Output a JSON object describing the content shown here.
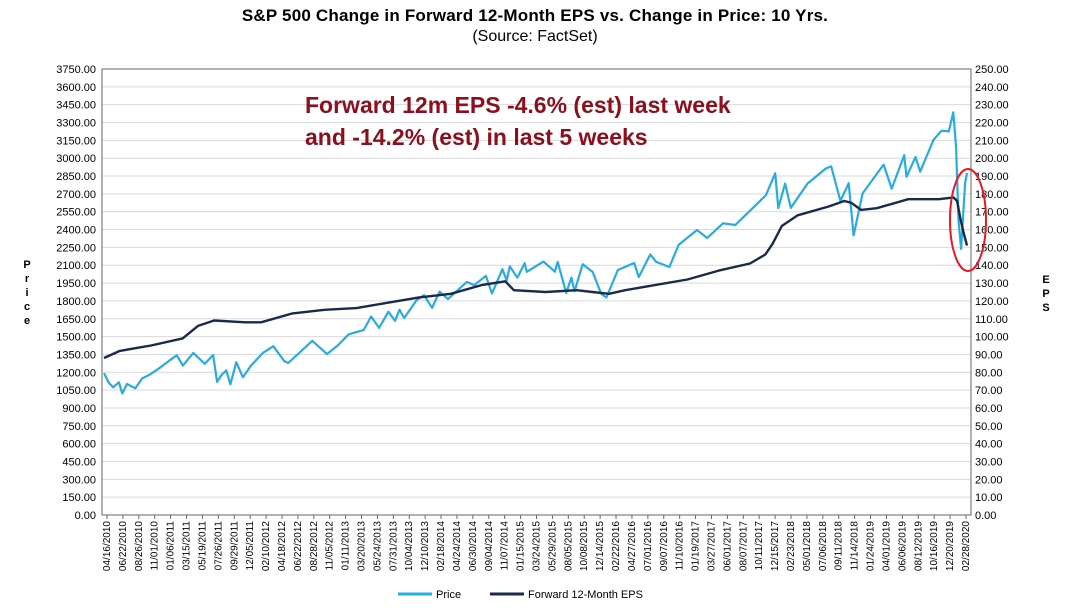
{
  "chart_data": {
    "type": "line",
    "title": "S&P 500 Change in Forward 12-Month EPS vs. Change in Price: 10 Yrs.",
    "subtitle": "(Source: FactSet)",
    "ylabel": "Price",
    "y2label": "EPS",
    "ylim": [
      0,
      3750
    ],
    "y2lim": [
      0,
      250
    ],
    "yticks": [
      "0.00",
      "150.00",
      "300.00",
      "450.00",
      "600.00",
      "750.00",
      "900.00",
      "1050.00",
      "1200.00",
      "1350.00",
      "1500.00",
      "1650.00",
      "1800.00",
      "1950.00",
      "2100.00",
      "2250.00",
      "2400.00",
      "2550.00",
      "2700.00",
      "2850.00",
      "3000.00",
      "3150.00",
      "3300.00",
      "3450.00",
      "3600.00",
      "3750.00"
    ],
    "y2ticks": [
      "0.00",
      "10.00",
      "20.00",
      "30.00",
      "40.00",
      "50.00",
      "60.00",
      "70.00",
      "80.00",
      "90.00",
      "100.00",
      "110.00",
      "120.00",
      "130.00",
      "140.00",
      "150.00",
      "160.00",
      "170.00",
      "180.00",
      "190.00",
      "200.00",
      "210.00",
      "220.00",
      "230.00",
      "240.00",
      "250.00"
    ],
    "xticks": [
      "04/16/2010",
      "06/22/2010",
      "08/26/2010",
      "11/01/2010",
      "01/06/2011",
      "03/15/2011",
      "05/19/2011",
      "07/26/2011",
      "09/29/2011",
      "12/05/2011",
      "02/10/2012",
      "04/18/2012",
      "06/22/2012",
      "08/28/2012",
      "11/05/2012",
      "01/11/2013",
      "03/20/2013",
      "05/24/2013",
      "07/31/2013",
      "10/04/2013",
      "12/10/2013",
      "02/18/2014",
      "04/24/2014",
      "06/30/2014",
      "09/04/2014",
      "11/07/2014",
      "01/15/2015",
      "03/24/2015",
      "05/29/2015",
      "08/05/2015",
      "10/08/2015",
      "12/14/2015",
      "02/22/2016",
      "04/27/2016",
      "07/01/2016",
      "09/07/2016",
      "11/10/2016",
      "01/19/2017",
      "03/27/2017",
      "06/01/2017",
      "08/07/2017",
      "10/11/2017",
      "12/15/2017",
      "02/23/2018",
      "05/01/2018",
      "07/06/2018",
      "09/11/2018",
      "11/14/2018",
      "01/24/2019",
      "04/01/2019",
      "06/06/2019",
      "08/12/2019",
      "10/16/2019",
      "12/20/2019",
      "02/28/2020"
    ],
    "grid": true,
    "legend_position": "bottom",
    "annotation": [
      "Forward 12m EPS -4.6% (est) last week",
      "and -14.2% (est) in last 5 weeks"
    ],
    "series": [
      {
        "name": "Price",
        "axis": "left",
        "color": "#29abe2",
        "points": [
          [
            "2010-04-16",
            1192
          ],
          [
            "2010-05-07",
            1110
          ],
          [
            "2010-05-25",
            1074
          ],
          [
            "2010-06-18",
            1117
          ],
          [
            "2010-07-02",
            1022
          ],
          [
            "2010-07-23",
            1102
          ],
          [
            "2010-08-13",
            1079
          ],
          [
            "2010-08-27",
            1065
          ],
          [
            "2010-09-24",
            1148
          ],
          [
            "2010-10-29",
            1183
          ],
          [
            "2010-12-10",
            1240
          ],
          [
            "2011-01-14",
            1293
          ],
          [
            "2011-02-18",
            1343
          ],
          [
            "2011-03-16",
            1256
          ],
          [
            "2011-04-29",
            1363
          ],
          [
            "2011-06-17",
            1271
          ],
          [
            "2011-07-22",
            1345
          ],
          [
            "2011-08-08",
            1119
          ],
          [
            "2011-08-26",
            1176
          ],
          [
            "2011-09-16",
            1216
          ],
          [
            "2011-10-03",
            1099
          ],
          [
            "2011-10-28",
            1285
          ],
          [
            "2011-11-25",
            1158
          ],
          [
            "2011-12-30",
            1257
          ],
          [
            "2012-02-17",
            1361
          ],
          [
            "2012-04-02",
            1419
          ],
          [
            "2012-05-18",
            1295
          ],
          [
            "2012-06-04",
            1278
          ],
          [
            "2012-07-20",
            1362
          ],
          [
            "2012-09-14",
            1465
          ],
          [
            "2012-11-15",
            1353
          ],
          [
            "2012-12-31",
            1426
          ],
          [
            "2013-02-15",
            1519
          ],
          [
            "2013-04-19",
            1555
          ],
          [
            "2013-05-21",
            1669
          ],
          [
            "2013-06-24",
            1573
          ],
          [
            "2013-08-02",
            1709
          ],
          [
            "2013-08-30",
            1633
          ],
          [
            "2013-09-18",
            1725
          ],
          [
            "2013-10-08",
            1656
          ],
          [
            "2013-11-29",
            1806
          ],
          [
            "2013-12-31",
            1848
          ],
          [
            "2014-02-03",
            1742
          ],
          [
            "2014-03-07",
            1878
          ],
          [
            "2014-04-11",
            1815
          ],
          [
            "2014-06-30",
            1960
          ],
          [
            "2014-07-31",
            1931
          ],
          [
            "2014-09-19",
            2011
          ],
          [
            "2014-10-15",
            1862
          ],
          [
            "2014-11-28",
            2067
          ],
          [
            "2014-12-16",
            1972
          ],
          [
            "2014-12-29",
            2090
          ],
          [
            "2015-01-30",
            1995
          ],
          [
            "2015-03-02",
            2117
          ],
          [
            "2015-03-11",
            2045
          ],
          [
            "2015-05-21",
            2131
          ],
          [
            "2015-07-08",
            2046
          ],
          [
            "2015-07-20",
            2128
          ],
          [
            "2015-08-25",
            1867
          ],
          [
            "2015-09-16",
            1996
          ],
          [
            "2015-09-29",
            1881
          ],
          [
            "2015-11-03",
            2109
          ],
          [
            "2015-12-15",
            2043
          ],
          [
            "2016-01-20",
            1859
          ],
          [
            "2016-02-11",
            1829
          ],
          [
            "2016-03-31",
            2060
          ],
          [
            "2016-06-08",
            2119
          ],
          [
            "2016-06-27",
            2000
          ],
          [
            "2016-08-15",
            2191
          ],
          [
            "2016-09-09",
            2128
          ],
          [
            "2016-11-04",
            2085
          ],
          [
            "2016-12-13",
            2271
          ],
          [
            "2017-03-01",
            2396
          ],
          [
            "2017-04-13",
            2329
          ],
          [
            "2017-06-19",
            2453
          ],
          [
            "2017-08-10",
            2438
          ],
          [
            "2017-10-20",
            2575
          ],
          [
            "2017-12-18",
            2690
          ],
          [
            "2018-01-26",
            2873
          ],
          [
            "2018-02-08",
            2581
          ],
          [
            "2018-03-09",
            2787
          ],
          [
            "2018-04-02",
            2582
          ],
          [
            "2018-06-12",
            2787
          ],
          [
            "2018-08-29",
            2914
          ],
          [
            "2018-09-20",
            2931
          ],
          [
            "2018-10-29",
            2641
          ],
          [
            "2018-12-03",
            2790
          ],
          [
            "2018-12-24",
            2351
          ],
          [
            "2019-01-31",
            2704
          ],
          [
            "2019-04-30",
            2946
          ],
          [
            "2019-06-03",
            2744
          ],
          [
            "2019-07-26",
            3025
          ],
          [
            "2019-08-05",
            2844
          ],
          [
            "2019-09-12",
            3009
          ],
          [
            "2019-10-02",
            2887
          ],
          [
            "2019-11-27",
            3154
          ],
          [
            "2019-12-31",
            3231
          ],
          [
            "2020-01-31",
            3225
          ],
          [
            "2020-02-19",
            3386
          ],
          [
            "2020-03-02",
            3090
          ],
          [
            "2020-03-12",
            2480
          ],
          [
            "2020-03-23",
            2237
          ],
          [
            "2020-04-09",
            2790
          ],
          [
            "2020-04-17",
            2875
          ]
        ]
      },
      {
        "name": "Forward 12-Month EPS",
        "axis": "right",
        "color": "#1b2a4a",
        "points": [
          [
            "2010-04-16",
            88
          ],
          [
            "2010-06-22",
            92
          ],
          [
            "2010-11-01",
            95
          ],
          [
            "2011-03-15",
            99
          ],
          [
            "2011-05-19",
            106
          ],
          [
            "2011-07-26",
            109
          ],
          [
            "2011-12-05",
            108
          ],
          [
            "2012-02-10",
            108
          ],
          [
            "2012-06-22",
            113
          ],
          [
            "2012-11-05",
            115
          ],
          [
            "2013-03-20",
            116
          ],
          [
            "2013-07-31",
            119
          ],
          [
            "2013-12-10",
            122
          ],
          [
            "2014-04-24",
            124
          ],
          [
            "2014-09-04",
            129
          ],
          [
            "2014-12-10",
            131
          ],
          [
            "2015-01-15",
            126
          ],
          [
            "2015-05-29",
            125
          ],
          [
            "2015-10-08",
            126
          ],
          [
            "2015-12-14",
            125
          ],
          [
            "2016-02-22",
            124
          ],
          [
            "2016-05-01",
            126
          ],
          [
            "2016-09-07",
            129
          ],
          [
            "2017-01-19",
            132
          ],
          [
            "2017-06-01",
            137
          ],
          [
            "2017-10-11",
            141
          ],
          [
            "2017-12-15",
            146
          ],
          [
            "2018-01-15",
            152
          ],
          [
            "2018-02-23",
            162
          ],
          [
            "2018-05-01",
            168
          ],
          [
            "2018-09-11",
            173
          ],
          [
            "2018-11-14",
            176
          ],
          [
            "2018-12-14",
            175
          ],
          [
            "2019-01-24",
            171
          ],
          [
            "2019-04-01",
            172
          ],
          [
            "2019-08-12",
            177
          ],
          [
            "2019-12-20",
            177
          ],
          [
            "2020-02-20",
            178
          ],
          [
            "2020-03-06",
            176
          ],
          [
            "2020-03-20",
            166
          ],
          [
            "2020-04-03",
            158
          ],
          [
            "2020-04-17",
            151
          ]
        ]
      }
    ]
  }
}
